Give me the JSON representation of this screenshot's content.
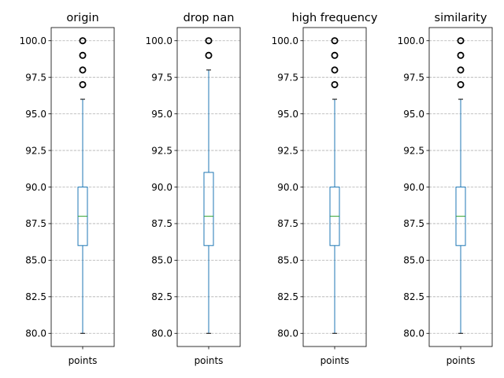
{
  "chart_data": [
    {
      "type": "box",
      "title": "origin",
      "categories": [
        "points"
      ],
      "ylim": [
        79.1,
        100.9
      ],
      "yticks": [
        80.0,
        82.5,
        85.0,
        87.5,
        90.0,
        92.5,
        95.0,
        97.5,
        100.0
      ],
      "ytick_labels": [
        "80.0",
        "82.5",
        "85.0",
        "87.5",
        "90.0",
        "92.5",
        "95.0",
        "97.5",
        "100.0"
      ],
      "grid": "y-dashed",
      "box": {
        "whisker_low": 80,
        "q1": 86,
        "median": 88,
        "q3": 90,
        "whisker_high": 96
      },
      "outliers": [
        97,
        98,
        99,
        100
      ]
    },
    {
      "type": "box",
      "title": "drop nan",
      "categories": [
        "points"
      ],
      "ylim": [
        79.1,
        100.9
      ],
      "yticks": [
        80.0,
        82.5,
        85.0,
        87.5,
        90.0,
        92.5,
        95.0,
        97.5,
        100.0
      ],
      "ytick_labels": [
        "80.0",
        "82.5",
        "85.0",
        "87.5",
        "90.0",
        "92.5",
        "95.0",
        "97.5",
        "100.0"
      ],
      "grid": "y-dashed",
      "box": {
        "whisker_low": 80,
        "q1": 86,
        "median": 88,
        "q3": 91,
        "whisker_high": 98
      },
      "outliers": [
        99,
        100
      ]
    },
    {
      "type": "box",
      "title": "high frequency",
      "categories": [
        "points"
      ],
      "ylim": [
        79.1,
        100.9
      ],
      "yticks": [
        80.0,
        82.5,
        85.0,
        87.5,
        90.0,
        92.5,
        95.0,
        97.5,
        100.0
      ],
      "ytick_labels": [
        "80.0",
        "82.5",
        "85.0",
        "87.5",
        "90.0",
        "92.5",
        "95.0",
        "97.5",
        "100.0"
      ],
      "grid": "y-dashed",
      "box": {
        "whisker_low": 80,
        "q1": 86,
        "median": 88,
        "q3": 90,
        "whisker_high": 96
      },
      "outliers": [
        97,
        98,
        99,
        100
      ]
    },
    {
      "type": "box",
      "title": "similarity",
      "categories": [
        "points"
      ],
      "ylim": [
        79.1,
        100.9
      ],
      "yticks": [
        80.0,
        82.5,
        85.0,
        87.5,
        90.0,
        92.5,
        95.0,
        97.5,
        100.0
      ],
      "ytick_labels": [
        "80.0",
        "82.5",
        "85.0",
        "87.5",
        "90.0",
        "92.5",
        "95.0",
        "97.5",
        "100.0"
      ],
      "grid": "y-dashed",
      "box": {
        "whisker_low": 80,
        "q1": 86,
        "median": 88,
        "q3": 90,
        "whisker_high": 96
      },
      "outliers": [
        97,
        98,
        99,
        100
      ]
    }
  ],
  "colors": {
    "box": "#1f77b4",
    "median": "#2ca02c",
    "outlier_edge": "#000000",
    "grid": "#b0b0b0",
    "axes": "#000000"
  }
}
